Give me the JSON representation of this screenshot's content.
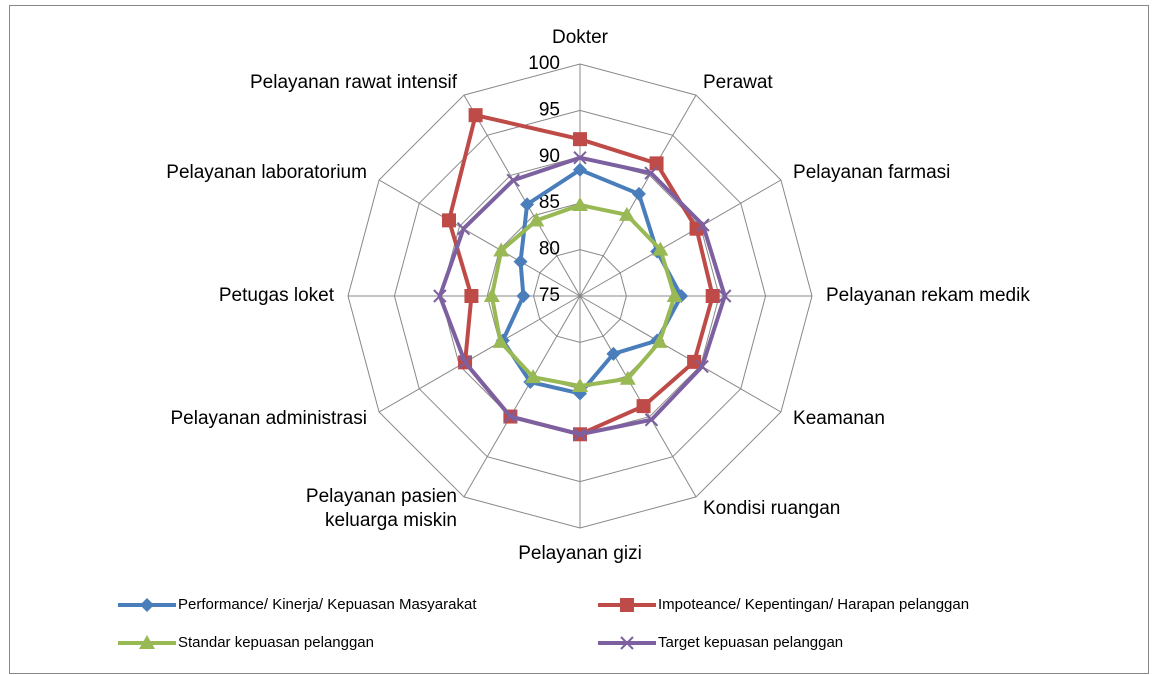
{
  "chart_data": {
    "type": "radar",
    "categories": [
      "Dokter",
      "Perawat",
      "Pelayanan farmasi",
      "Pelayanan rekam medik",
      "Keamanan",
      "Kondisi ruangan",
      "Pelayanan gizi",
      "Pelayanan pasien\nkeluarga miskin",
      "Pelayanan administrasi",
      "Petugas loket",
      "Pelayanan laboratorium",
      "Pelayanan rawat intensif"
    ],
    "series": [
      {
        "name": "Performance/ Kinerja/ Kepuasan Masyarakat",
        "color": "#4a7ebb",
        "marker": "diamond",
        "values": [
          88.6,
          87.7,
          84.6,
          85.9,
          84.6,
          82.2,
          85.5,
          85.7,
          84.6,
          81.1,
          82.4,
          86.4
        ]
      },
      {
        "name": "Impoteance/ Kepentingan/ Harapan pelanggan",
        "color": "#be4b48",
        "marker": "square",
        "values": [
          91.9,
          91.5,
          89.5,
          89.3,
          89.2,
          88.7,
          89.9,
          90.0,
          89.3,
          86.7,
          91.3,
          97.5
        ]
      },
      {
        "name": "Standar kepuasan pelanggan",
        "color": "#98b954",
        "marker": "triangle",
        "values": [
          84.8,
          85.1,
          85.0,
          85.2,
          84.9,
          85.3,
          84.7,
          85.1,
          84.9,
          84.5,
          84.8,
          84.4
        ]
      },
      {
        "name": "Target kepuasan pelanggan",
        "color": "#7d60a0",
        "marker": "x",
        "values": [
          89.9,
          90.3,
          90.3,
          90.6,
          90.2,
          90.4,
          89.9,
          90.0,
          89.3,
          90.1,
          89.5,
          89.4
        ]
      }
    ],
    "ylim": [
      75,
      100
    ],
    "yticks": [
      75,
      80,
      85,
      90,
      95,
      100
    ],
    "grid": true,
    "legend": "bottom"
  }
}
